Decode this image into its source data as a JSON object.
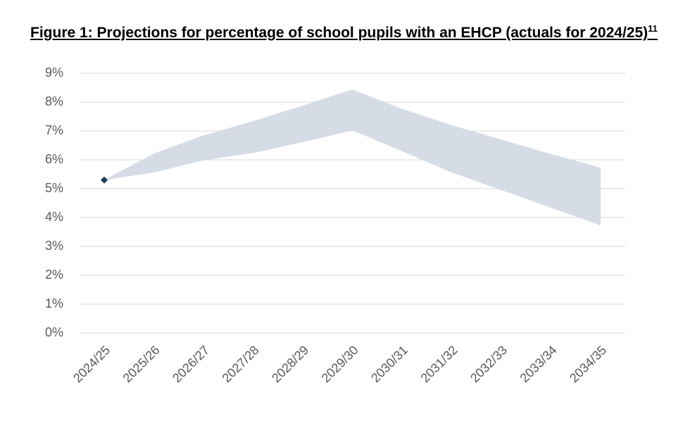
{
  "chart_data": {
    "type": "band",
    "title": "Figure 1:  Projections for percentage of school pupils with an EHCP (actuals for 2024/25)",
    "title_note": "11",
    "categories": [
      "2024/25",
      "2025/26",
      "2026/27",
      "2027/28",
      "2028/29",
      "2029/30",
      "2030/31",
      "2031/32",
      "2032/33",
      "2033/34",
      "2034/35"
    ],
    "upper": [
      5.3,
      6.22,
      6.85,
      7.34,
      7.88,
      8.44,
      7.76,
      7.2,
      6.7,
      6.2,
      5.73
    ],
    "lower": [
      5.3,
      5.56,
      5.98,
      6.24,
      6.61,
      7.02,
      6.3,
      5.56,
      4.95,
      4.34,
      3.73
    ],
    "color": "#d6dce5",
    "actuals": [
      5.3,
      null,
      null,
      null,
      null,
      null,
      null,
      null,
      null,
      null,
      null
    ],
    "marker_color": "#1f3a5a",
    "ylim": [
      0,
      9
    ],
    "yticks": [
      {
        "value": 0,
        "label": "0%"
      },
      {
        "value": 1,
        "label": "1%"
      },
      {
        "value": 2,
        "label": "2%"
      },
      {
        "value": 3,
        "label": "3%"
      },
      {
        "value": 4,
        "label": "4%"
      },
      {
        "value": 5,
        "label": "5%"
      },
      {
        "value": 6,
        "label": "6%"
      },
      {
        "value": 7,
        "label": "7%"
      },
      {
        "value": 8,
        "label": "8%"
      },
      {
        "value": 9,
        "label": "9%"
      }
    ],
    "grid": true
  }
}
